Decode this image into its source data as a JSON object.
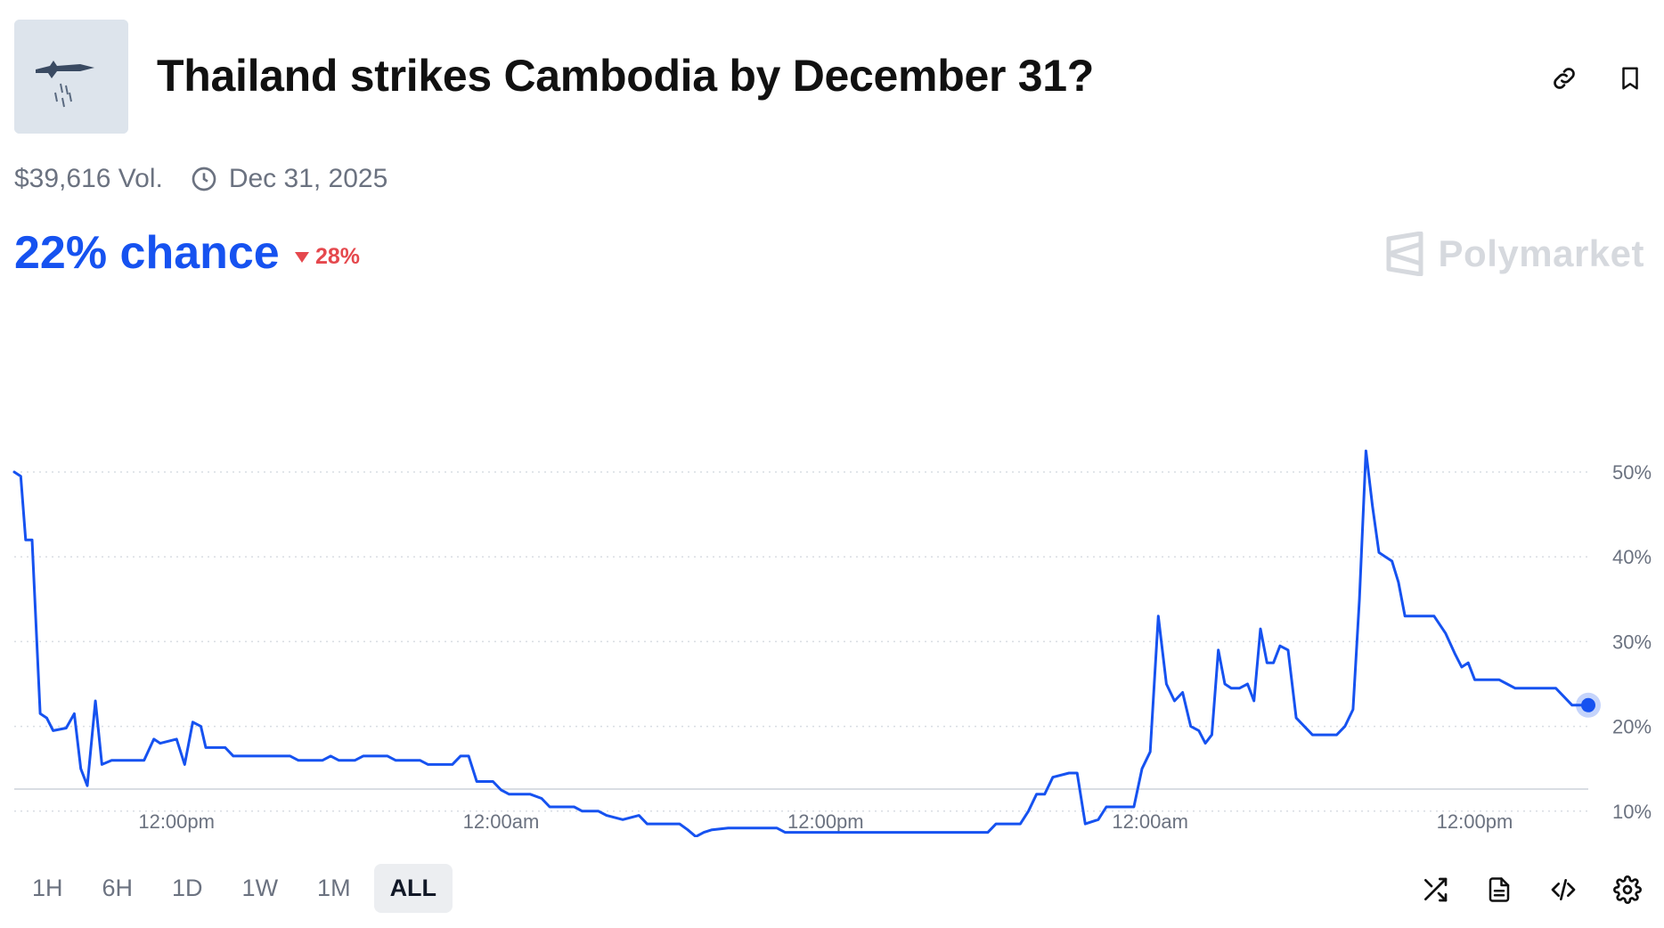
{
  "header": {
    "title": "Thailand strikes Cambodia by December 31?",
    "thumbnail_icon": "fighter-jet-image",
    "actions": [
      {
        "icon": "link-icon"
      },
      {
        "icon": "bookmark-icon"
      }
    ]
  },
  "meta": {
    "volume": "$39,616 Vol.",
    "end_date": "Dec 31, 2025",
    "end_date_icon": "clock-icon"
  },
  "summary": {
    "chance": "22% chance",
    "change": "28%",
    "change_direction": "down",
    "brand": "Polymarket"
  },
  "colors": {
    "accent": "#1652f0",
    "negative": "#e5484d",
    "grid": "#d9dde3",
    "muted": "#6b7280"
  },
  "chart_data": {
    "type": "line",
    "grid": true,
    "ylim": [
      0,
      55
    ],
    "yticks": [
      10,
      20,
      30,
      40,
      50
    ],
    "ytick_labels": [
      "10%",
      "20%",
      "30%",
      "40%",
      "50%"
    ],
    "xlim": [
      0,
      97
    ],
    "xticks": [
      10,
      30,
      50,
      70,
      90
    ],
    "xtick_labels": [
      "12:00pm",
      "12:00am",
      "12:00pm",
      "12:00am",
      "12:00pm"
    ],
    "series": [
      {
        "color": "#1652f0",
        "points": [
          [
            0,
            50
          ],
          [
            0.4,
            49.5
          ],
          [
            0.7,
            42
          ],
          [
            1.1,
            42
          ],
          [
            1.6,
            21.5
          ],
          [
            2.0,
            21
          ],
          [
            2.4,
            19.5
          ],
          [
            3.2,
            19.8
          ],
          [
            3.7,
            21.5
          ],
          [
            4.1,
            15
          ],
          [
            4.5,
            13
          ],
          [
            5.0,
            23
          ],
          [
            5.4,
            15.5
          ],
          [
            6.0,
            16
          ],
          [
            8.0,
            16
          ],
          [
            8.6,
            18.5
          ],
          [
            9.0,
            18
          ],
          [
            10.0,
            18.5
          ],
          [
            10.5,
            15.5
          ],
          [
            11.0,
            20.5
          ],
          [
            11.5,
            20
          ],
          [
            11.8,
            17.5
          ],
          [
            13.0,
            17.5
          ],
          [
            13.5,
            16.5
          ],
          [
            17.0,
            16.5
          ],
          [
            17.5,
            16
          ],
          [
            19.0,
            16
          ],
          [
            19.5,
            16.5
          ],
          [
            20.0,
            16
          ],
          [
            21.0,
            16
          ],
          [
            21.5,
            16.5
          ],
          [
            23.0,
            16.5
          ],
          [
            23.5,
            16
          ],
          [
            25.0,
            16
          ],
          [
            25.5,
            15.5
          ],
          [
            27.0,
            15.5
          ],
          [
            27.5,
            16.5
          ],
          [
            28.0,
            16.5
          ],
          [
            28.5,
            13.5
          ],
          [
            29.0,
            13.5
          ],
          [
            29.5,
            13.5
          ],
          [
            30.0,
            12.5
          ],
          [
            30.5,
            12
          ],
          [
            31.8,
            12
          ],
          [
            32.5,
            11.5
          ],
          [
            33.0,
            10.5
          ],
          [
            34.5,
            10.5
          ],
          [
            35.0,
            10
          ],
          [
            36.0,
            10
          ],
          [
            36.5,
            9.5
          ],
          [
            37.5,
            9
          ],
          [
            38.5,
            9.5
          ],
          [
            39.0,
            8.5
          ],
          [
            41.0,
            8.5
          ],
          [
            41.5,
            7.8
          ],
          [
            42.0,
            7
          ],
          [
            42.5,
            7.5
          ],
          [
            43.0,
            7.8
          ],
          [
            44.0,
            8
          ],
          [
            47.0,
            8
          ],
          [
            47.5,
            7.5
          ],
          [
            60.0,
            7.5
          ],
          [
            60.5,
            8.5
          ],
          [
            62.0,
            8.5
          ],
          [
            62.5,
            10
          ],
          [
            63.0,
            12
          ],
          [
            63.5,
            12
          ],
          [
            64.0,
            14
          ],
          [
            65.0,
            14.5
          ],
          [
            65.5,
            14.5
          ],
          [
            66.0,
            8.5
          ],
          [
            66.8,
            9
          ],
          [
            67.3,
            10.5
          ],
          [
            69.0,
            10.5
          ],
          [
            69.5,
            15
          ],
          [
            70.0,
            17
          ],
          [
            70.5,
            33
          ],
          [
            71.0,
            25
          ],
          [
            71.5,
            23
          ],
          [
            72.0,
            24
          ],
          [
            72.5,
            20
          ],
          [
            73.0,
            19.5
          ],
          [
            73.4,
            18
          ],
          [
            73.8,
            19
          ],
          [
            74.2,
            29
          ],
          [
            74.6,
            25
          ],
          [
            75.0,
            24.5
          ],
          [
            75.5,
            24.5
          ],
          [
            76.0,
            25
          ],
          [
            76.4,
            23
          ],
          [
            76.8,
            31.5
          ],
          [
            77.2,
            27.5
          ],
          [
            77.6,
            27.5
          ],
          [
            78.0,
            29.5
          ],
          [
            78.5,
            29
          ],
          [
            79.0,
            21
          ],
          [
            79.5,
            20
          ],
          [
            80.0,
            19
          ],
          [
            81.5,
            19
          ],
          [
            82.0,
            20
          ],
          [
            82.5,
            22
          ],
          [
            82.9,
            35
          ],
          [
            83.3,
            52.5
          ],
          [
            83.7,
            46
          ],
          [
            84.1,
            40.5
          ],
          [
            84.5,
            40
          ],
          [
            84.9,
            39.5
          ],
          [
            85.3,
            37
          ],
          [
            85.7,
            33
          ],
          [
            87.5,
            33
          ],
          [
            88.2,
            31
          ],
          [
            88.8,
            28.5
          ],
          [
            89.2,
            27
          ],
          [
            89.6,
            27.5
          ],
          [
            90.0,
            25.5
          ],
          [
            91.5,
            25.5
          ],
          [
            92.0,
            25
          ],
          [
            92.5,
            24.5
          ],
          [
            95.0,
            24.5
          ],
          [
            95.5,
            23.5
          ],
          [
            96.0,
            22.5
          ],
          [
            97.0,
            22.5
          ]
        ]
      }
    ]
  },
  "ranges": [
    "1H",
    "6H",
    "1D",
    "1W",
    "1M",
    "ALL"
  ],
  "active_range": "ALL",
  "tools": [
    {
      "icon": "shuffle-icon"
    },
    {
      "icon": "document-icon"
    },
    {
      "icon": "embed-code-icon"
    },
    {
      "icon": "settings-gear-icon"
    }
  ]
}
